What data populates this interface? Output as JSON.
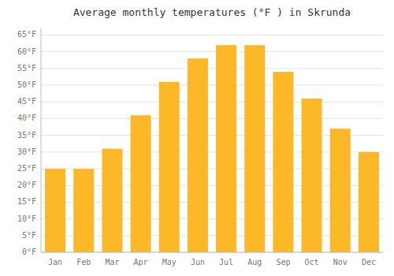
{
  "chart_data": {
    "type": "bar",
    "title": "Average monthly temperatures (°F ) in Skrunda",
    "categories": [
      "Jan",
      "Feb",
      "Mar",
      "Apr",
      "May",
      "Jun",
      "Jul",
      "Aug",
      "Sep",
      "Oct",
      "Nov",
      "Dec"
    ],
    "values": [
      25,
      25,
      31,
      41,
      51,
      58,
      62,
      62,
      54,
      46,
      37,
      30
    ],
    "color": "#FDB827",
    "ylim": [
      0,
      67
    ],
    "yticks": [
      {
        "value": 0,
        "label": "0°F"
      },
      {
        "value": 5,
        "label": "5°F"
      },
      {
        "value": 10,
        "label": "10°F"
      },
      {
        "value": 15,
        "label": "15°F"
      },
      {
        "value": 20,
        "label": "20°F"
      },
      {
        "value": 25,
        "label": "25°F"
      },
      {
        "value": 30,
        "label": "30°F"
      },
      {
        "value": 35,
        "label": "35°F"
      },
      {
        "value": 40,
        "label": "40°F"
      },
      {
        "value": 45,
        "label": "45°F"
      },
      {
        "value": 50,
        "label": "50°F"
      },
      {
        "value": 55,
        "label": "55°F"
      },
      {
        "value": 60,
        "label": "60°F"
      },
      {
        "value": 65,
        "label": "65°F"
      }
    ],
    "grid": true
  }
}
